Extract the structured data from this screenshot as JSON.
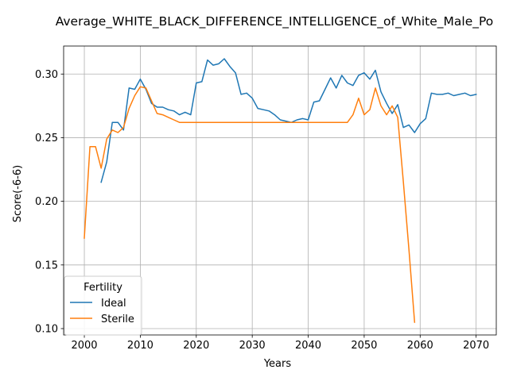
{
  "chart_data": {
    "type": "line",
    "title": "Average_WHITE_BLACK_DIFFERENCE_INTELLIGENCE_of_White_Male_Po",
    "xlabel": "Years",
    "ylabel": "Score(-6-6)",
    "xlim": [
      1996.3,
      2073.6
    ],
    "ylim": [
      0.095,
      0.322
    ],
    "xticks": [
      2000,
      2010,
      2020,
      2030,
      2040,
      2050,
      2060,
      2070
    ],
    "xtick_labels": [
      "2000",
      "2010",
      "2020",
      "2030",
      "2040",
      "2050",
      "2060",
      "2070"
    ],
    "yticks": [
      0.1,
      0.15,
      0.2,
      0.25,
      0.3
    ],
    "ytick_labels": [
      "0.10",
      "0.15",
      "0.20",
      "0.25",
      "0.30"
    ],
    "grid": true,
    "legend": {
      "title": "Fertility",
      "position": "lower-left"
    },
    "series": [
      {
        "name": "Ideal",
        "color": "#1f77b4",
        "x": [
          2003,
          2004,
          2005,
          2006,
          2007,
          2008,
          2009,
          2010,
          2011,
          2012,
          2013,
          2014,
          2015,
          2016,
          2017,
          2018,
          2019,
          2020,
          2021,
          2022,
          2023,
          2024,
          2025,
          2026,
          2027,
          2028,
          2029,
          2030,
          2031,
          2032,
          2033,
          2034,
          2035,
          2036,
          2037,
          2038,
          2039,
          2040,
          2041,
          2042,
          2043,
          2044,
          2045,
          2046,
          2047,
          2048,
          2049,
          2050,
          2051,
          2052,
          2053,
          2054,
          2055,
          2056,
          2057,
          2058,
          2059,
          2060,
          2061,
          2062,
          2063,
          2064,
          2065,
          2066,
          2067,
          2068,
          2069,
          2070
        ],
        "y": [
          0.215,
          0.231,
          0.262,
          0.262,
          0.256,
          0.289,
          0.288,
          0.296,
          0.288,
          0.277,
          0.274,
          0.274,
          0.272,
          0.271,
          0.268,
          0.27,
          0.268,
          0.293,
          0.294,
          0.311,
          0.307,
          0.308,
          0.312,
          0.306,
          0.301,
          0.284,
          0.285,
          0.281,
          0.273,
          0.272,
          0.271,
          0.268,
          0.264,
          0.263,
          0.262,
          0.264,
          0.265,
          0.264,
          0.278,
          0.279,
          0.288,
          0.297,
          0.289,
          0.299,
          0.293,
          0.291,
          0.299,
          0.301,
          0.296,
          0.303,
          0.286,
          0.277,
          0.269,
          0.276,
          0.258,
          0.26,
          0.254,
          0.261,
          0.265,
          0.285,
          0.284,
          0.284,
          0.285,
          0.283,
          0.284,
          0.285,
          0.283,
          0.284
        ]
      },
      {
        "name": "Sterile",
        "color": "#ff7f0e",
        "x": [
          2000,
          2001,
          2002,
          2003,
          2004,
          2005,
          2006,
          2007,
          2008,
          2009,
          2010,
          2011,
          2012,
          2013,
          2014,
          2015,
          2016,
          2017,
          2018,
          2019,
          2020,
          2021,
          2022,
          2023,
          2024,
          2025,
          2026,
          2027,
          2028,
          2029,
          2030,
          2031,
          2032,
          2033,
          2034,
          2035,
          2036,
          2037,
          2038,
          2039,
          2040,
          2041,
          2042,
          2043,
          2044,
          2045,
          2046,
          2047,
          2048,
          2049,
          2050,
          2051,
          2052,
          2053,
          2054,
          2055,
          2056,
          2057,
          2058,
          2059
        ],
        "y": [
          0.171,
          0.243,
          0.243,
          0.226,
          0.249,
          0.256,
          0.254,
          0.258,
          0.273,
          0.283,
          0.29,
          0.289,
          0.279,
          0.269,
          0.268,
          0.266,
          0.264,
          0.262,
          0.262,
          0.262,
          0.262,
          0.262,
          0.262,
          0.262,
          0.262,
          0.262,
          0.262,
          0.262,
          0.262,
          0.262,
          0.262,
          0.262,
          0.262,
          0.262,
          0.262,
          0.262,
          0.262,
          0.262,
          0.262,
          0.262,
          0.262,
          0.262,
          0.262,
          0.262,
          0.262,
          0.262,
          0.262,
          0.262,
          0.268,
          0.281,
          0.268,
          0.272,
          0.289,
          0.275,
          0.268,
          0.275,
          0.266,
          0.215,
          0.162,
          0.105
        ]
      }
    ]
  }
}
